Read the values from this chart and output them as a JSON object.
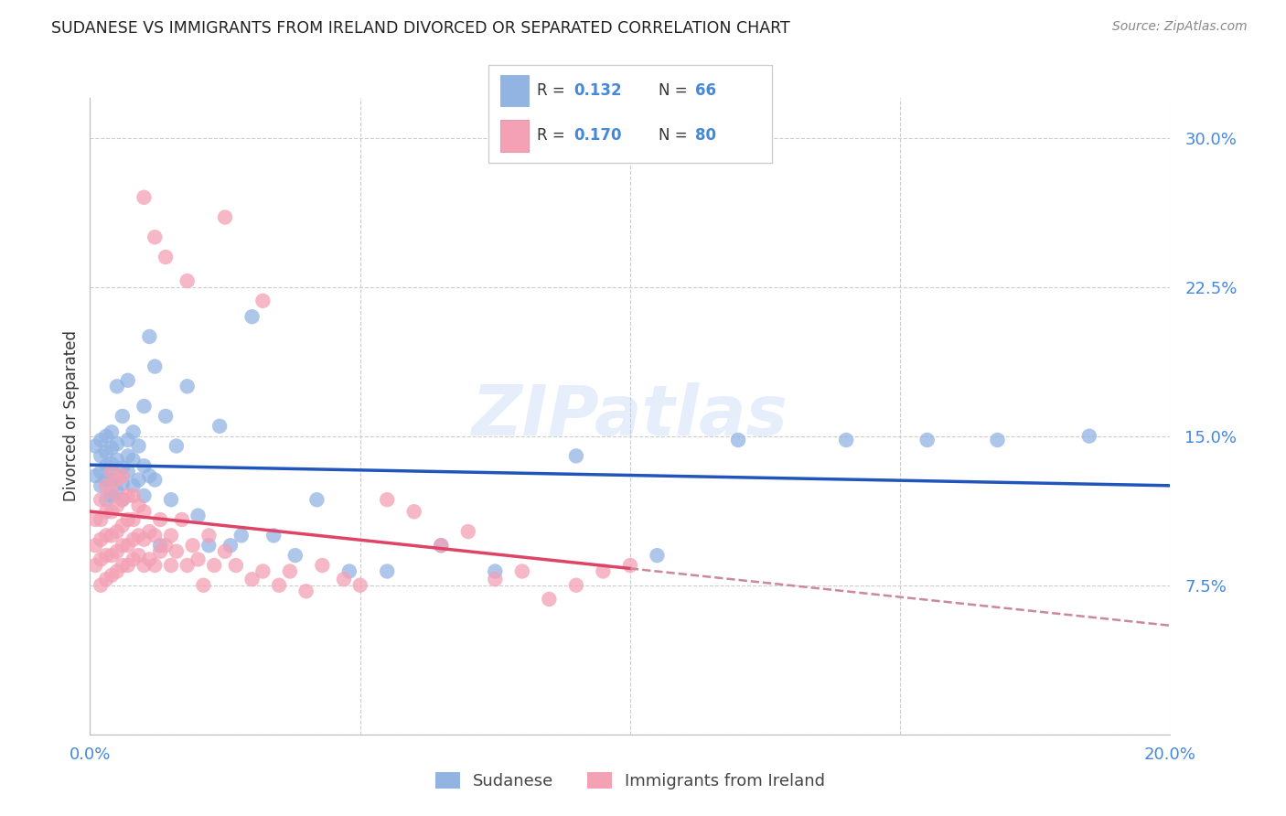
{
  "title": "SUDANESE VS IMMIGRANTS FROM IRELAND DIVORCED OR SEPARATED CORRELATION CHART",
  "source": "Source: ZipAtlas.com",
  "ylabel": "Divorced or Separated",
  "xlim": [
    0.0,
    0.2
  ],
  "ylim": [
    0.0,
    0.32
  ],
  "color_sudanese": "#92b4e3",
  "color_ireland": "#f4a0b5",
  "color_line_sudanese": "#2255bb",
  "color_line_ireland": "#dd4466",
  "color_line_ireland_dash": "#cc8899",
  "color_axis_labels": "#4488dd",
  "watermark": "ZIPatlas",
  "sudanese_x": [
    0.001,
    0.001,
    0.002,
    0.002,
    0.002,
    0.002,
    0.003,
    0.003,
    0.003,
    0.003,
    0.003,
    0.004,
    0.004,
    0.004,
    0.004,
    0.004,
    0.005,
    0.005,
    0.005,
    0.005,
    0.005,
    0.006,
    0.006,
    0.006,
    0.006,
    0.007,
    0.007,
    0.007,
    0.007,
    0.008,
    0.008,
    0.008,
    0.009,
    0.009,
    0.01,
    0.01,
    0.01,
    0.011,
    0.011,
    0.012,
    0.012,
    0.013,
    0.014,
    0.015,
    0.016,
    0.018,
    0.02,
    0.022,
    0.024,
    0.026,
    0.028,
    0.03,
    0.034,
    0.038,
    0.042,
    0.048,
    0.055,
    0.065,
    0.075,
    0.09,
    0.105,
    0.12,
    0.14,
    0.155,
    0.168,
    0.185
  ],
  "sudanese_y": [
    0.13,
    0.145,
    0.125,
    0.132,
    0.14,
    0.148,
    0.118,
    0.128,
    0.135,
    0.142,
    0.15,
    0.12,
    0.128,
    0.136,
    0.144,
    0.152,
    0.122,
    0.13,
    0.138,
    0.146,
    0.175,
    0.118,
    0.126,
    0.134,
    0.16,
    0.132,
    0.14,
    0.148,
    0.178,
    0.125,
    0.138,
    0.152,
    0.128,
    0.145,
    0.12,
    0.135,
    0.165,
    0.13,
    0.2,
    0.128,
    0.185,
    0.095,
    0.16,
    0.118,
    0.145,
    0.175,
    0.11,
    0.095,
    0.155,
    0.095,
    0.1,
    0.21,
    0.1,
    0.09,
    0.118,
    0.082,
    0.082,
    0.095,
    0.082,
    0.14,
    0.09,
    0.148,
    0.148,
    0.148,
    0.148,
    0.15
  ],
  "ireland_x": [
    0.001,
    0.001,
    0.001,
    0.002,
    0.002,
    0.002,
    0.002,
    0.002,
    0.003,
    0.003,
    0.003,
    0.003,
    0.003,
    0.004,
    0.004,
    0.004,
    0.004,
    0.004,
    0.004,
    0.005,
    0.005,
    0.005,
    0.005,
    0.005,
    0.006,
    0.006,
    0.006,
    0.006,
    0.006,
    0.007,
    0.007,
    0.007,
    0.007,
    0.008,
    0.008,
    0.008,
    0.008,
    0.009,
    0.009,
    0.009,
    0.01,
    0.01,
    0.01,
    0.011,
    0.011,
    0.012,
    0.012,
    0.013,
    0.013,
    0.014,
    0.015,
    0.015,
    0.016,
    0.017,
    0.018,
    0.019,
    0.02,
    0.021,
    0.022,
    0.023,
    0.025,
    0.027,
    0.03,
    0.032,
    0.035,
    0.037,
    0.04,
    0.043,
    0.047,
    0.05,
    0.055,
    0.06,
    0.065,
    0.07,
    0.075,
    0.08,
    0.085,
    0.09,
    0.095,
    0.1
  ],
  "ireland_y": [
    0.085,
    0.095,
    0.108,
    0.075,
    0.088,
    0.098,
    0.108,
    0.118,
    0.078,
    0.09,
    0.1,
    0.112,
    0.125,
    0.08,
    0.09,
    0.1,
    0.112,
    0.122,
    0.132,
    0.082,
    0.092,
    0.102,
    0.115,
    0.128,
    0.085,
    0.095,
    0.105,
    0.118,
    0.13,
    0.085,
    0.095,
    0.108,
    0.12,
    0.088,
    0.098,
    0.108,
    0.12,
    0.09,
    0.1,
    0.115,
    0.085,
    0.098,
    0.112,
    0.088,
    0.102,
    0.085,
    0.1,
    0.092,
    0.108,
    0.095,
    0.085,
    0.1,
    0.092,
    0.108,
    0.085,
    0.095,
    0.088,
    0.075,
    0.1,
    0.085,
    0.092,
    0.085,
    0.078,
    0.082,
    0.075,
    0.082,
    0.072,
    0.085,
    0.078,
    0.075,
    0.118,
    0.112,
    0.095,
    0.102,
    0.078,
    0.082,
    0.068,
    0.075,
    0.082,
    0.085
  ],
  "ireland_outliers_x": [
    0.01,
    0.012,
    0.014,
    0.018,
    0.025,
    0.032
  ],
  "ireland_outliers_y": [
    0.27,
    0.25,
    0.24,
    0.228,
    0.26,
    0.218
  ]
}
